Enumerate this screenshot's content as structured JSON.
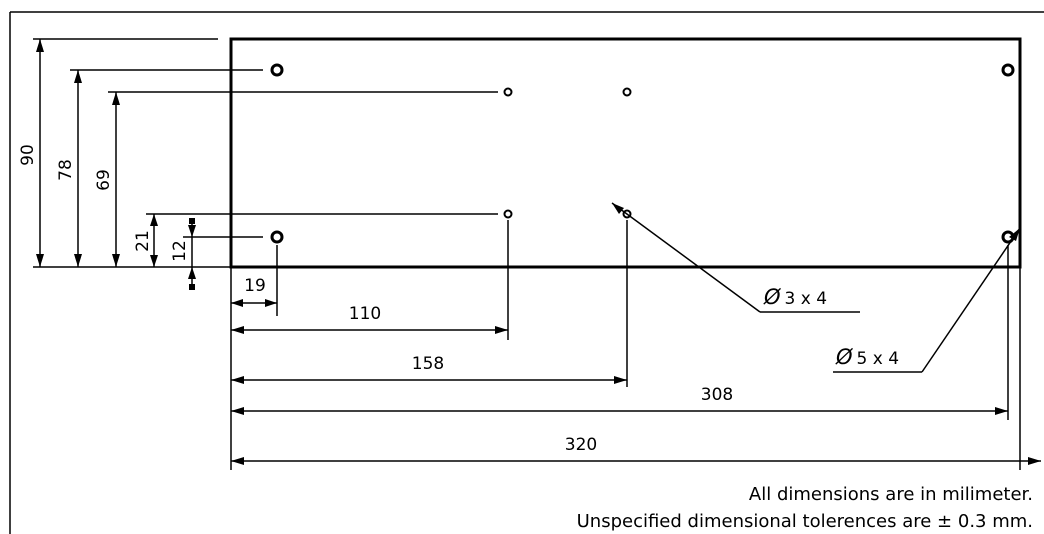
{
  "dimensions": {
    "vertical": {
      "d90": "90",
      "d78": "78",
      "d69": "69",
      "d21": "21",
      "d12": "12"
    },
    "horizontal": {
      "d19": "19",
      "d110": "110",
      "d158": "158",
      "d308": "308",
      "d320": "320"
    }
  },
  "callouts": {
    "small_holes": {
      "symbol": "Ø",
      "text": "3 x 4"
    },
    "large_holes": {
      "symbol": "Ø",
      "text": "5 x 4"
    }
  },
  "notes": {
    "line1": "All dimensions are in milimeter.",
    "line2": "Unspecified dimensional tolerences are ± 0.3 mm."
  }
}
